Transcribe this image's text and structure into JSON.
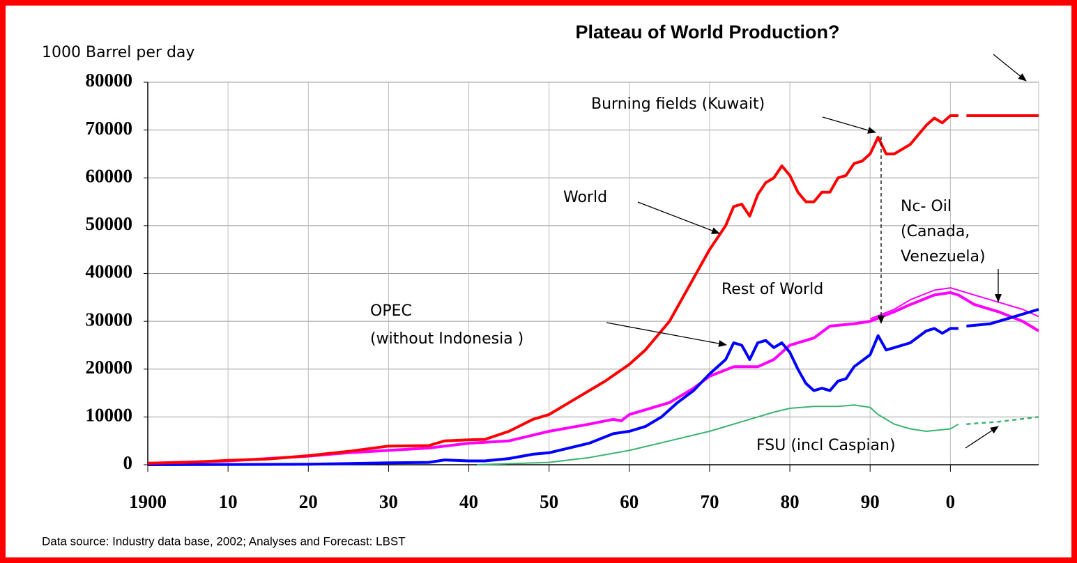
{
  "chart_data": {
    "type": "line",
    "title": "Plateau of World Production?",
    "y_label": "1000 Barrel per  day",
    "source": "Data source:  Industry data base, 2002;   Analyses and Forecast:        LBST",
    "annotations": {
      "burning": "Burning fields  (Kuwait)",
      "world": "World",
      "nc_oil": [
        "Nc- Oil",
        "(Canada,",
        "Venezuela)"
      ],
      "rest": "Rest of World",
      "opec": [
        "OPEC",
        "(without Indonesia )"
      ],
      "fsu": "FSU (incl Caspian)"
    },
    "xlim": [
      1900,
      2011
    ],
    "xticks": [
      1900,
      {
        "value": 1910,
        "label": "10"
      },
      {
        "value": 1920,
        "label": "20"
      },
      {
        "value": 1930,
        "label": "30"
      },
      {
        "value": 1940,
        "label": "40"
      },
      {
        "value": 1950,
        "label": "50"
      },
      {
        "value": 1960,
        "label": "60"
      },
      {
        "value": 1970,
        "label": "70"
      },
      {
        "value": 1980,
        "label": "80"
      },
      {
        "value": 1990,
        "label": "90"
      },
      {
        "value": 2000,
        "label": "0"
      }
    ],
    "ylim": [
      0,
      80000
    ],
    "yticks": [
      0,
      10000,
      20000,
      30000,
      40000,
      50000,
      60000,
      70000,
      80000
    ],
    "grid": true,
    "series": [
      {
        "color": "#ff00ff",
        "width": 2,
        "dash": false,
        "x": [
          1990,
          1993,
          1995,
          1998,
          2000,
          2003,
          2006,
          2009,
          2011
        ],
        "values": [
          30500,
          32500,
          34500,
          36500,
          37000,
          35500,
          34000,
          32500,
          31000
        ]
      },
      {
        "color": "#ff00ff",
        "width": 4,
        "dash": false,
        "x": [
          1900,
          1910,
          1920,
          1925,
          1930,
          1935,
          1940,
          1945,
          1950,
          1955,
          1958,
          1959,
          1960,
          1965,
          1968,
          1970,
          1973,
          1976,
          1978,
          1980,
          1983,
          1985,
          1988,
          1990,
          1993,
          1995,
          1998,
          2000,
          2001,
          2003,
          2006,
          2009,
          2011
        ],
        "values": [
          300,
          800,
          1800,
          2500,
          3000,
          3500,
          4500,
          5000,
          7000,
          8500,
          9500,
          9200,
          10500,
          13000,
          16000,
          18500,
          20500,
          20500,
          22000,
          25000,
          26500,
          29000,
          29500,
          30000,
          32000,
          33500,
          35500,
          36000,
          35500,
          33500,
          32000,
          30000,
          28000
        ]
      },
      {
        "color": "#3cb371",
        "width": 2,
        "dash": false,
        "x": [
          1941,
          1950,
          1955,
          1960,
          1965,
          1970,
          1975,
          1978,
          1980,
          1983,
          1986,
          1988,
          1990,
          1991,
          1993,
          1995,
          1997,
          2000,
          2001
        ],
        "values": [
          0,
          500,
          1500,
          3000,
          5000,
          7000,
          9500,
          11000,
          11800,
          12200,
          12200,
          12500,
          12000,
          10500,
          8500,
          7500,
          7000,
          7500,
          8500
        ]
      },
      {
        "color": "#3cb371",
        "width": 2.5,
        "dash": true,
        "x": [
          2002,
          2006,
          2011
        ],
        "values": [
          8500,
          9000,
          10000
        ]
      },
      {
        "color": "#0000ff",
        "width": 4,
        "dash": false,
        "x": [
          1900,
          1920,
          1930,
          1935,
          1937,
          1940,
          1942,
          1945,
          1948,
          1950,
          1955,
          1958,
          1960,
          1962,
          1964,
          1966,
          1968,
          1970,
          1972,
          1973,
          1974,
          1975,
          1976,
          1977,
          1978,
          1979,
          1980,
          1981,
          1982,
          1983,
          1984,
          1985,
          1986,
          1987,
          1988,
          1990,
          1991,
          1992,
          1993,
          1995,
          1997,
          1998,
          1999,
          2000,
          2001
        ],
        "values": [
          0,
          100,
          400,
          500,
          1000,
          800,
          800,
          1300,
          2200,
          2500,
          4500,
          6500,
          7000,
          8000,
          10000,
          13000,
          15500,
          19000,
          22000,
          25500,
          25000,
          22000,
          25500,
          26000,
          24500,
          25500,
          23500,
          20000,
          17000,
          15500,
          16000,
          15500,
          17500,
          18000,
          20500,
          23000,
          27000,
          24000,
          24500,
          25500,
          28000,
          28500,
          27500,
          28500,
          28500
        ]
      },
      {
        "color": "#0000ff",
        "width": 4,
        "dash": false,
        "x": [
          2002,
          2005,
          2008,
          2011
        ],
        "values": [
          29000,
          29500,
          31000,
          32500
        ]
      },
      {
        "color": "#ff0000",
        "width": 4,
        "dash": false,
        "x": [
          1900,
          1905,
          1910,
          1915,
          1920,
          1925,
          1930,
          1935,
          1937,
          1940,
          1942,
          1945,
          1948,
          1950,
          1952,
          1955,
          1957,
          1960,
          1962,
          1965,
          1968,
          1970,
          1972,
          1973,
          1974,
          1975,
          1976,
          1977,
          1978,
          1979,
          1980,
          1981,
          1982,
          1983,
          1984,
          1985,
          1986,
          1987,
          1988,
          1989,
          1990,
          1991,
          1992,
          1993,
          1994,
          1995,
          1996,
          1997,
          1998,
          1999,
          2000,
          2001
        ],
        "values": [
          300,
          500,
          900,
          1200,
          1900,
          2800,
          3900,
          4000,
          5000,
          5200,
          5300,
          7000,
          9500,
          10500,
          12500,
          15500,
          17500,
          21000,
          24000,
          30000,
          39000,
          45000,
          50000,
          54000,
          54500,
          52000,
          56500,
          59000,
          60000,
          62500,
          60500,
          57000,
          55000,
          55000,
          57000,
          57000,
          60000,
          60500,
          63000,
          63500,
          65000,
          68500,
          65000,
          65000,
          66000,
          67000,
          69000,
          71000,
          72500,
          71500,
          73000,
          73000
        ]
      },
      {
        "color": "#ff0000",
        "width": 4,
        "dash": false,
        "x": [
          2002,
          2011
        ],
        "values": [
          73000,
          73000
        ]
      }
    ]
  }
}
